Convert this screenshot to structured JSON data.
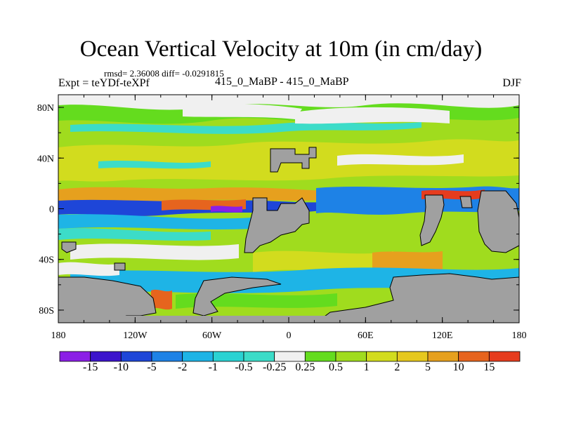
{
  "chart_data": {
    "type": "heatmap",
    "title": "Ocean Vertical Velocity at 10m (in cm/day)",
    "stats": "rmsd= 2.36008 diff= -0.0291815",
    "experiment": "Expt = teYDf-teXPf",
    "subtitle": "415_0_MaBP - 415_0_MaBP",
    "season": "DJF",
    "x_axis": {
      "range": [
        -180,
        180
      ],
      "ticks": [
        {
          "value": -180,
          "label": "180"
        },
        {
          "value": -120,
          "label": "120W"
        },
        {
          "value": -60,
          "label": "60W"
        },
        {
          "value": 0,
          "label": "0"
        },
        {
          "value": 60,
          "label": "60E"
        },
        {
          "value": 120,
          "label": "120E"
        },
        {
          "value": 180,
          "label": "180"
        }
      ]
    },
    "y_axis": {
      "range": [
        -90,
        90
      ],
      "ticks": [
        {
          "value": 80,
          "label": "80N"
        },
        {
          "value": 40,
          "label": "40N"
        },
        {
          "value": 0,
          "label": "0"
        },
        {
          "value": -40,
          "label": "40S"
        },
        {
          "value": -80,
          "label": "80S"
        }
      ]
    },
    "colorbar": {
      "colors": [
        "#8b1fe6",
        "#3c14cc",
        "#1e46d8",
        "#1e82e6",
        "#1eb4e6",
        "#2ad2d2",
        "#3cdcc8",
        "#f0f0f0",
        "#64dc1e",
        "#a0dc1e",
        "#d2dc1e",
        "#e6c81e",
        "#e6a01e",
        "#e6641e",
        "#e63c1e"
      ],
      "labels": [
        "-15",
        "-10",
        "-5",
        "-2",
        "-1",
        "-0.5",
        "-0.25",
        "0.25",
        "0.5",
        "1",
        "2",
        "5",
        "10",
        "15"
      ]
    },
    "land_color": "#a0a0a0"
  }
}
